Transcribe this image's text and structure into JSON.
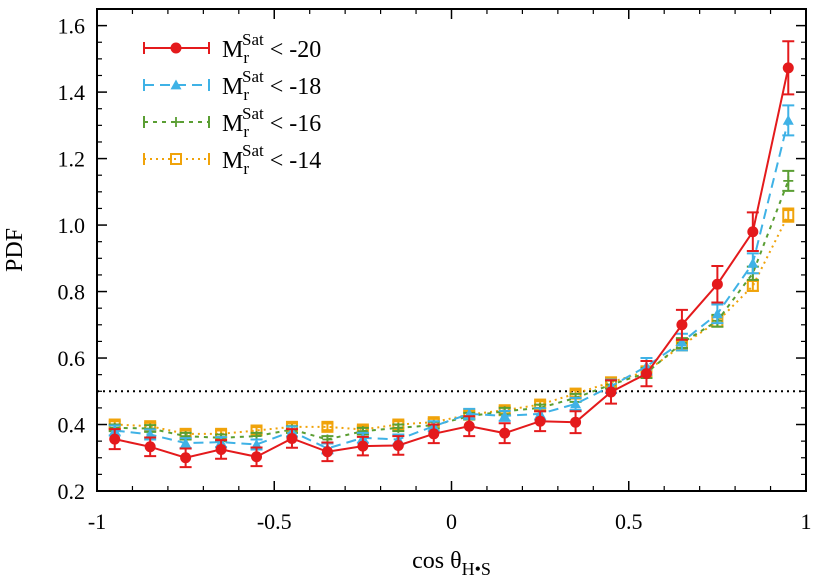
{
  "chart_data": {
    "type": "line",
    "xlabel_main": "cos θ",
    "xlabel_sub": "H•S",
    "ylabel": "PDF",
    "xlim": [
      -1,
      1
    ],
    "ylim": [
      0.2,
      1.65
    ],
    "x_ticks": [
      "-1",
      "-0.5",
      "0",
      "0.5",
      "1"
    ],
    "x_tick_values": [
      -1,
      -0.5,
      0,
      0.5,
      1
    ],
    "y_ticks": [
      "0.2",
      "0.4",
      "0.6",
      "0.8",
      "1.0",
      "1.2",
      "1.4",
      "1.6"
    ],
    "y_tick_values": [
      0.2,
      0.4,
      0.6,
      0.8,
      1.0,
      1.2,
      1.4,
      1.6
    ],
    "reference_line": 0.5,
    "legend_position": "top-left",
    "x": [
      -0.95,
      -0.85,
      -0.75,
      -0.65,
      -0.55,
      -0.45,
      -0.35,
      -0.25,
      -0.15,
      -0.05,
      0.05,
      0.15,
      0.25,
      0.35,
      0.45,
      0.55,
      0.65,
      0.75,
      0.85,
      0.95
    ],
    "series": [
      {
        "legend_base": "M",
        "legend_sub": "r",
        "legend_sup": "Sat",
        "legend_rest": " < -20",
        "color": "#e41a1c",
        "marker": "circle",
        "dash": "",
        "values": [
          0.356,
          0.333,
          0.3,
          0.325,
          0.303,
          0.358,
          0.318,
          0.335,
          0.337,
          0.372,
          0.395,
          0.374,
          0.41,
          0.407,
          0.498,
          0.553,
          0.7,
          0.822,
          0.98,
          1.473
        ],
        "errors": [
          0.03,
          0.028,
          0.028,
          0.028,
          0.028,
          0.028,
          0.028,
          0.028,
          0.028,
          0.028,
          0.03,
          0.03,
          0.03,
          0.033,
          0.035,
          0.038,
          0.045,
          0.055,
          0.058,
          0.08
        ]
      },
      {
        "legend_base": "M",
        "legend_sub": "r",
        "legend_sup": "Sat",
        "legend_rest": " < -18",
        "color": "#3fb2e6",
        "marker": "triangle",
        "dash": "10,6",
        "values": [
          0.382,
          0.37,
          0.344,
          0.347,
          0.34,
          0.379,
          0.328,
          0.36,
          0.355,
          0.395,
          0.432,
          0.426,
          0.432,
          0.462,
          0.515,
          0.575,
          0.648,
          0.733,
          0.885,
          1.315
        ],
        "errors": [
          0.015,
          0.015,
          0.015,
          0.015,
          0.015,
          0.015,
          0.015,
          0.015,
          0.015,
          0.015,
          0.015,
          0.015,
          0.017,
          0.018,
          0.02,
          0.025,
          0.025,
          0.028,
          0.03,
          0.045
        ]
      },
      {
        "legend_base": "M",
        "legend_sub": "r",
        "legend_sup": "Sat",
        "legend_rest": " < -16",
        "color": "#5a9e33",
        "marker": "plus",
        "dash": "4,5",
        "values": [
          0.39,
          0.388,
          0.365,
          0.36,
          0.365,
          0.385,
          0.355,
          0.38,
          0.39,
          0.398,
          0.425,
          0.44,
          0.45,
          0.48,
          0.52,
          0.555,
          0.645,
          0.712,
          0.855,
          1.133
        ],
        "errors": [
          0.01,
          0.01,
          0.01,
          0.01,
          0.01,
          0.01,
          0.01,
          0.01,
          0.01,
          0.01,
          0.01,
          0.01,
          0.01,
          0.012,
          0.012,
          0.015,
          0.015,
          0.018,
          0.02,
          0.03
        ]
      },
      {
        "legend_base": "M",
        "legend_sub": "r",
        "legend_sup": "Sat",
        "legend_rest": " < -14",
        "color": "#f0a30a",
        "marker": "square",
        "dash": "2,4",
        "values": [
          0.4,
          0.395,
          0.372,
          0.372,
          0.382,
          0.393,
          0.393,
          0.385,
          0.4,
          0.407,
          0.43,
          0.443,
          0.46,
          0.493,
          0.527,
          0.56,
          0.638,
          0.71,
          0.817,
          1.03
        ],
        "errors": [
          0.01,
          0.01,
          0.01,
          0.01,
          0.01,
          0.01,
          0.01,
          0.01,
          0.01,
          0.01,
          0.01,
          0.01,
          0.01,
          0.01,
          0.012,
          0.012,
          0.012,
          0.015,
          0.015,
          0.02
        ]
      }
    ]
  }
}
